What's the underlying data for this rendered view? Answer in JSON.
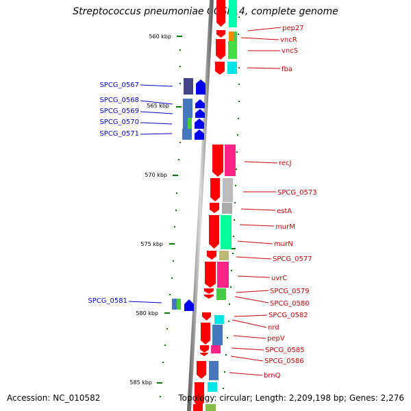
{
  "title": "Streptococcus pneumoniae CGSP14, complete genome",
  "accession": "Accession: NC_010582",
  "topology": "Topology: circular; Length: 2,209,198 bp; Genes: 2,276",
  "scale_labels": [
    "560 kbp",
    "565 kbp",
    "570 kbp",
    "575 kbp",
    "580 kbp",
    "585 kbp"
  ],
  "forward_genes": [
    "pep27",
    "vncR",
    "vncS",
    "fba",
    "recJ",
    "SPCG_0573",
    "estA",
    "murM",
    "murN",
    "SPCG_0577",
    "uvrC",
    "SPCG_0579",
    "SPCG_0580",
    "SPCG_0582",
    "nrd",
    "pepV",
    "SPCG_0585",
    "SPCG_0586",
    "brnQ"
  ],
  "reverse_genes": [
    "SPCG_0567",
    "SPCG_0568",
    "SPCG_0569",
    "SPCG_0570",
    "SPCG_0571",
    "SPCG_0581"
  ],
  "colors": {
    "forward_label": "#cc0000",
    "reverse_label": "#0000cc",
    "forward_gene": "#ff0000",
    "reverse_gene": "#0000ee",
    "backbone": "#888888",
    "tick": "#006600"
  }
}
